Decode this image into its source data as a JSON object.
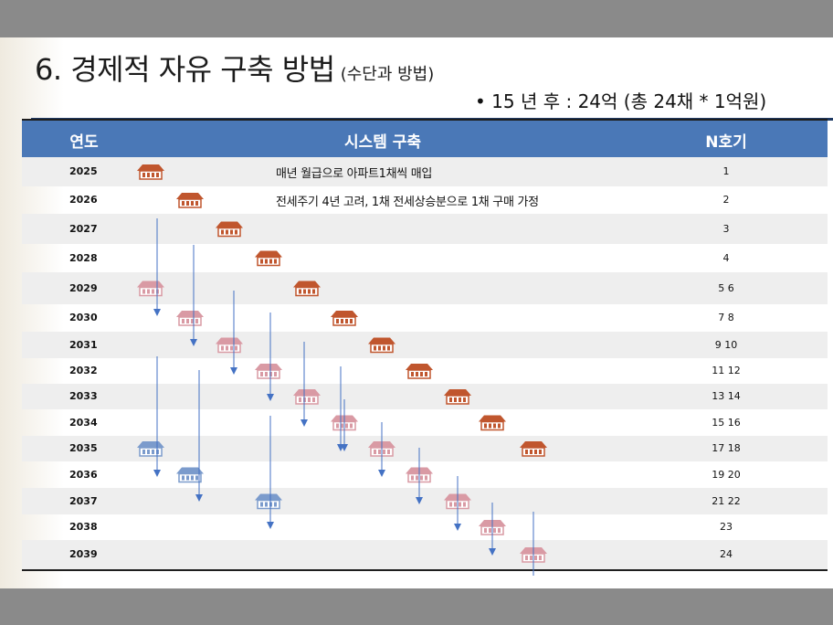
{
  "title": {
    "main": "6. 경제적 자유 구축 방법",
    "sub": "(수단과 방법)"
  },
  "summary": "• 15 년 후 : 24억 (총 24채 * 1억원)",
  "table": {
    "headers": {
      "year": "연도",
      "system": "시스템 구축",
      "count": "N호기"
    },
    "notes": [
      "매년 월급으로 아파트1채씩 매입",
      "전세주기 4년 고려, 1채 전세상승분으로 1채 구매 가정"
    ],
    "rows": [
      {
        "year": "2025",
        "n": "1"
      },
      {
        "year": "2026",
        "n": "2"
      },
      {
        "year": "2027",
        "n": "3"
      },
      {
        "year": "2028",
        "n": "4"
      },
      {
        "year": "2029",
        "n": "5 6"
      },
      {
        "year": "2030",
        "n": "7 8"
      },
      {
        "year": "2031",
        "n": "9 10"
      },
      {
        "year": "2032",
        "n": "11 12"
      },
      {
        "year": "2033",
        "n": "13 14"
      },
      {
        "year": "2034",
        "n": "15 16"
      },
      {
        "year": "2035",
        "n": "17 18"
      },
      {
        "year": "2036",
        "n": "19 20"
      },
      {
        "year": "2037",
        "n": "21 22"
      },
      {
        "year": "2038",
        "n": "23"
      },
      {
        "year": "2039",
        "n": "24"
      }
    ]
  },
  "house_colors": {
    "bought": "#c0562e",
    "lifted": "#d99aa4",
    "final": "#7b9bcc"
  },
  "arrow_color": "#4472c4"
}
